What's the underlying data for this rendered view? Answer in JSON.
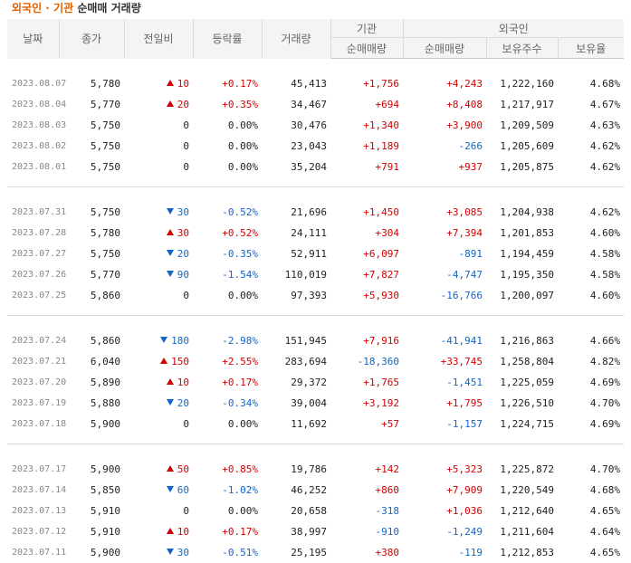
{
  "title": {
    "part1": "외국인 · 기관",
    "part2": "순매매 거래량"
  },
  "headers": {
    "date": "날짜",
    "close": "종가",
    "change": "전일비",
    "rate": "등락률",
    "volume": "거래량",
    "institution": "기관",
    "foreign": "외국인",
    "inst_net": "순매매량",
    "foreign_net": "순매매량",
    "holdings": "보유주수",
    "ratio": "보유율"
  },
  "groups": [
    {
      "rows": [
        {
          "date": "2023.08.07",
          "close": "5,780",
          "dir": "up",
          "change": "10",
          "rate": "+0.17%",
          "volume": "45,413",
          "inst": "+1,756",
          "foreign": "+4,243",
          "holdings": "1,222,160",
          "ratio": "4.68%"
        },
        {
          "date": "2023.08.04",
          "close": "5,770",
          "dir": "up",
          "change": "20",
          "rate": "+0.35%",
          "volume": "34,467",
          "inst": "+694",
          "foreign": "+8,408",
          "holdings": "1,217,917",
          "ratio": "4.67%"
        },
        {
          "date": "2023.08.03",
          "close": "5,750",
          "dir": "none",
          "change": "0",
          "rate": "0.00%",
          "volume": "30,476",
          "inst": "+1,340",
          "foreign": "+3,900",
          "holdings": "1,209,509",
          "ratio": "4.63%"
        },
        {
          "date": "2023.08.02",
          "close": "5,750",
          "dir": "none",
          "change": "0",
          "rate": "0.00%",
          "volume": "23,043",
          "inst": "+1,189",
          "foreign": "-266",
          "holdings": "1,205,609",
          "ratio": "4.62%"
        },
        {
          "date": "2023.08.01",
          "close": "5,750",
          "dir": "none",
          "change": "0",
          "rate": "0.00%",
          "volume": "35,204",
          "inst": "+791",
          "foreign": "+937",
          "holdings": "1,205,875",
          "ratio": "4.62%"
        }
      ]
    },
    {
      "rows": [
        {
          "date": "2023.07.31",
          "close": "5,750",
          "dir": "down",
          "change": "30",
          "rate": "-0.52%",
          "volume": "21,696",
          "inst": "+1,450",
          "foreign": "+3,085",
          "holdings": "1,204,938",
          "ratio": "4.62%"
        },
        {
          "date": "2023.07.28",
          "close": "5,780",
          "dir": "up",
          "change": "30",
          "rate": "+0.52%",
          "volume": "24,111",
          "inst": "+304",
          "foreign": "+7,394",
          "holdings": "1,201,853",
          "ratio": "4.60%"
        },
        {
          "date": "2023.07.27",
          "close": "5,750",
          "dir": "down",
          "change": "20",
          "rate": "-0.35%",
          "volume": "52,911",
          "inst": "+6,097",
          "foreign": "-891",
          "holdings": "1,194,459",
          "ratio": "4.58%"
        },
        {
          "date": "2023.07.26",
          "close": "5,770",
          "dir": "down",
          "change": "90",
          "rate": "-1.54%",
          "volume": "110,019",
          "inst": "+7,827",
          "foreign": "-4,747",
          "holdings": "1,195,350",
          "ratio": "4.58%"
        },
        {
          "date": "2023.07.25",
          "close": "5,860",
          "dir": "none",
          "change": "0",
          "rate": "0.00%",
          "volume": "97,393",
          "inst": "+5,930",
          "foreign": "-16,766",
          "holdings": "1,200,097",
          "ratio": "4.60%"
        }
      ]
    },
    {
      "rows": [
        {
          "date": "2023.07.24",
          "close": "5,860",
          "dir": "down",
          "change": "180",
          "rate": "-2.98%",
          "volume": "151,945",
          "inst": "+7,916",
          "foreign": "-41,941",
          "holdings": "1,216,863",
          "ratio": "4.66%"
        },
        {
          "date": "2023.07.21",
          "close": "6,040",
          "dir": "up",
          "change": "150",
          "rate": "+2.55%",
          "volume": "283,694",
          "inst": "-18,360",
          "foreign": "+33,745",
          "holdings": "1,258,804",
          "ratio": "4.82%"
        },
        {
          "date": "2023.07.20",
          "close": "5,890",
          "dir": "up",
          "change": "10",
          "rate": "+0.17%",
          "volume": "29,372",
          "inst": "+1,765",
          "foreign": "-1,451",
          "holdings": "1,225,059",
          "ratio": "4.69%"
        },
        {
          "date": "2023.07.19",
          "close": "5,880",
          "dir": "down",
          "change": "20",
          "rate": "-0.34%",
          "volume": "39,004",
          "inst": "+3,192",
          "foreign": "+1,795",
          "holdings": "1,226,510",
          "ratio": "4.70%"
        },
        {
          "date": "2023.07.18",
          "close": "5,900",
          "dir": "none",
          "change": "0",
          "rate": "0.00%",
          "volume": "11,692",
          "inst": "+57",
          "foreign": "-1,157",
          "holdings": "1,224,715",
          "ratio": "4.69%"
        }
      ]
    },
    {
      "rows": [
        {
          "date": "2023.07.17",
          "close": "5,900",
          "dir": "up",
          "change": "50",
          "rate": "+0.85%",
          "volume": "19,786",
          "inst": "+142",
          "foreign": "+5,323",
          "holdings": "1,225,872",
          "ratio": "4.70%"
        },
        {
          "date": "2023.07.14",
          "close": "5,850",
          "dir": "down",
          "change": "60",
          "rate": "-1.02%",
          "volume": "46,252",
          "inst": "+860",
          "foreign": "+7,909",
          "holdings": "1,220,549",
          "ratio": "4.68%"
        },
        {
          "date": "2023.07.13",
          "close": "5,910",
          "dir": "none",
          "change": "0",
          "rate": "0.00%",
          "volume": "20,658",
          "inst": "-318",
          "foreign": "+1,036",
          "holdings": "1,212,640",
          "ratio": "4.65%"
        },
        {
          "date": "2023.07.12",
          "close": "5,910",
          "dir": "up",
          "change": "10",
          "rate": "+0.17%",
          "volume": "38,997",
          "inst": "-910",
          "foreign": "-1,249",
          "holdings": "1,211,604",
          "ratio": "4.64%"
        },
        {
          "date": "2023.07.11",
          "close": "5,900",
          "dir": "down",
          "change": "30",
          "rate": "-0.51%",
          "volume": "25,195",
          "inst": "+380",
          "foreign": "-119",
          "holdings": "1,212,853",
          "ratio": "4.65%"
        }
      ]
    }
  ],
  "colors": {
    "up": "#d40000",
    "down": "#1266c7",
    "title_accent": "#e15f00",
    "header_bg": "#f4f4f4"
  },
  "icons": {
    "up": "triangle-up-icon",
    "down": "triangle-down-icon"
  }
}
